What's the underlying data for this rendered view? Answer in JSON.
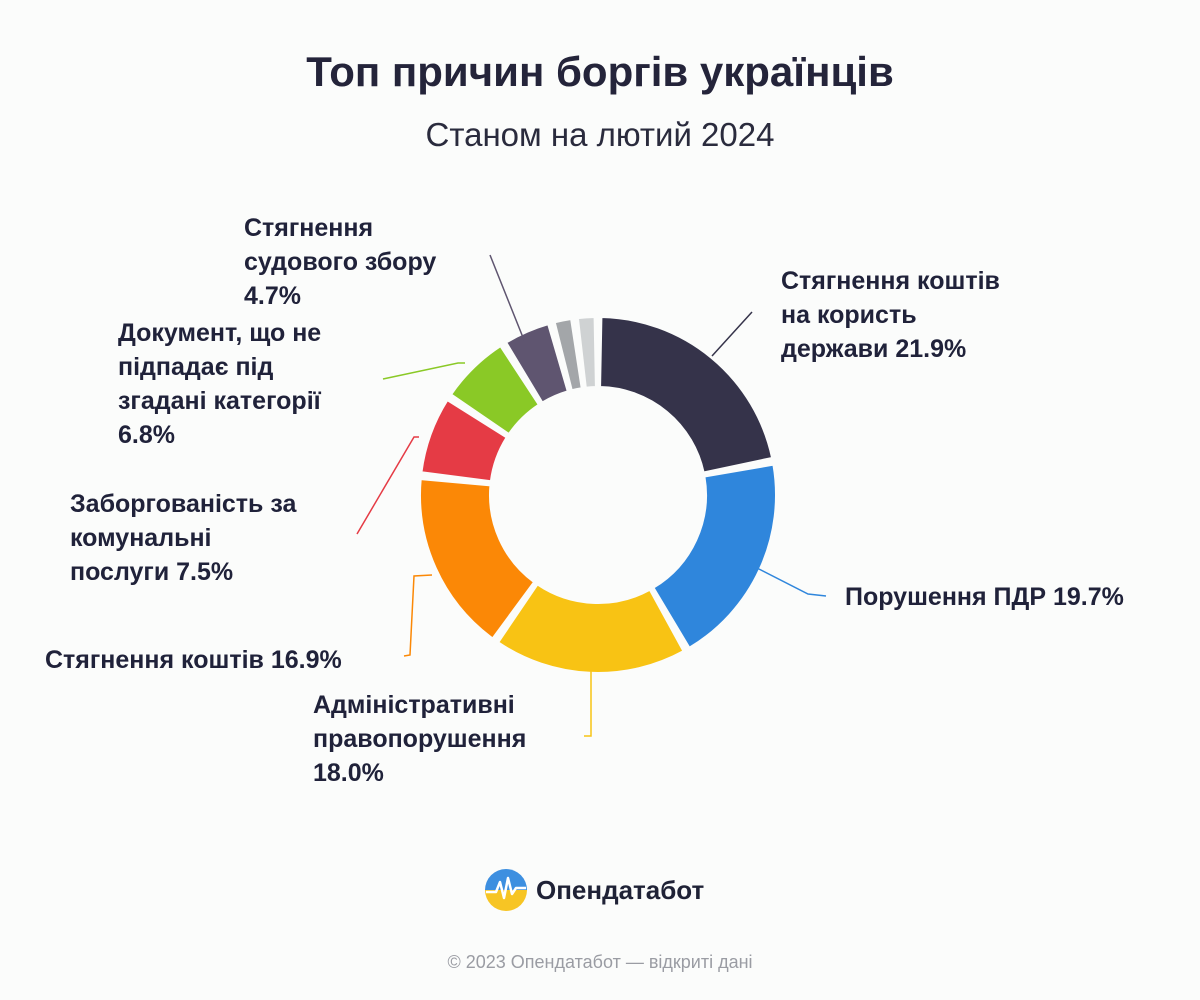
{
  "title": "Топ причин боргів українців",
  "subtitle": "Станом на лютий 2024",
  "chart_data": {
    "type": "donut",
    "title": "Топ причин боргів українців",
    "subtitle": "Станом на лютий 2024",
    "unit": "%",
    "slices": [
      {
        "label": "Стягнення коштів\nна користь\nдержави 21.9%",
        "category": "Стягнення коштів на користь держави",
        "value": 21.9,
        "color": "#35334a"
      },
      {
        "label": "Порушення ПДР 19.7%",
        "category": "Порушення ПДР",
        "value": 19.7,
        "color": "#2f86dc"
      },
      {
        "label": "Адміністративні\nправопорушення\n18.0%",
        "category": "Адміністративні правопорушення",
        "value": 18.0,
        "color": "#f8c314"
      },
      {
        "label": "Стягнення коштів 16.9%",
        "category": "Стягнення коштів",
        "value": 16.9,
        "color": "#fb8806"
      },
      {
        "label": "Заборгованість за\nкомунальні\nпослуги 7.5%",
        "category": "Заборгованість за комунальні послуги",
        "value": 7.5,
        "color": "#e53b45"
      },
      {
        "label": "Документ, що не\nпідпадає під\nзгадані категорії\n6.8%",
        "category": "Документ, що не підпадає під згадані категорії",
        "value": 6.8,
        "color": "#8ac926"
      },
      {
        "label": "Стягнення\nсудового збору\n4.7%",
        "category": "Стягнення судового збору",
        "value": 4.7,
        "color": "#5f5570"
      },
      {
        "label": "",
        "category": "",
        "value": 2.1,
        "color": "#a3a6a9"
      },
      {
        "label": "",
        "category": "",
        "value": 2.1,
        "color": "#cfd2d3"
      }
    ]
  },
  "brand": {
    "name": "Опендатабот"
  },
  "footer": "© 2023 Опендатабот — відкриті дані"
}
